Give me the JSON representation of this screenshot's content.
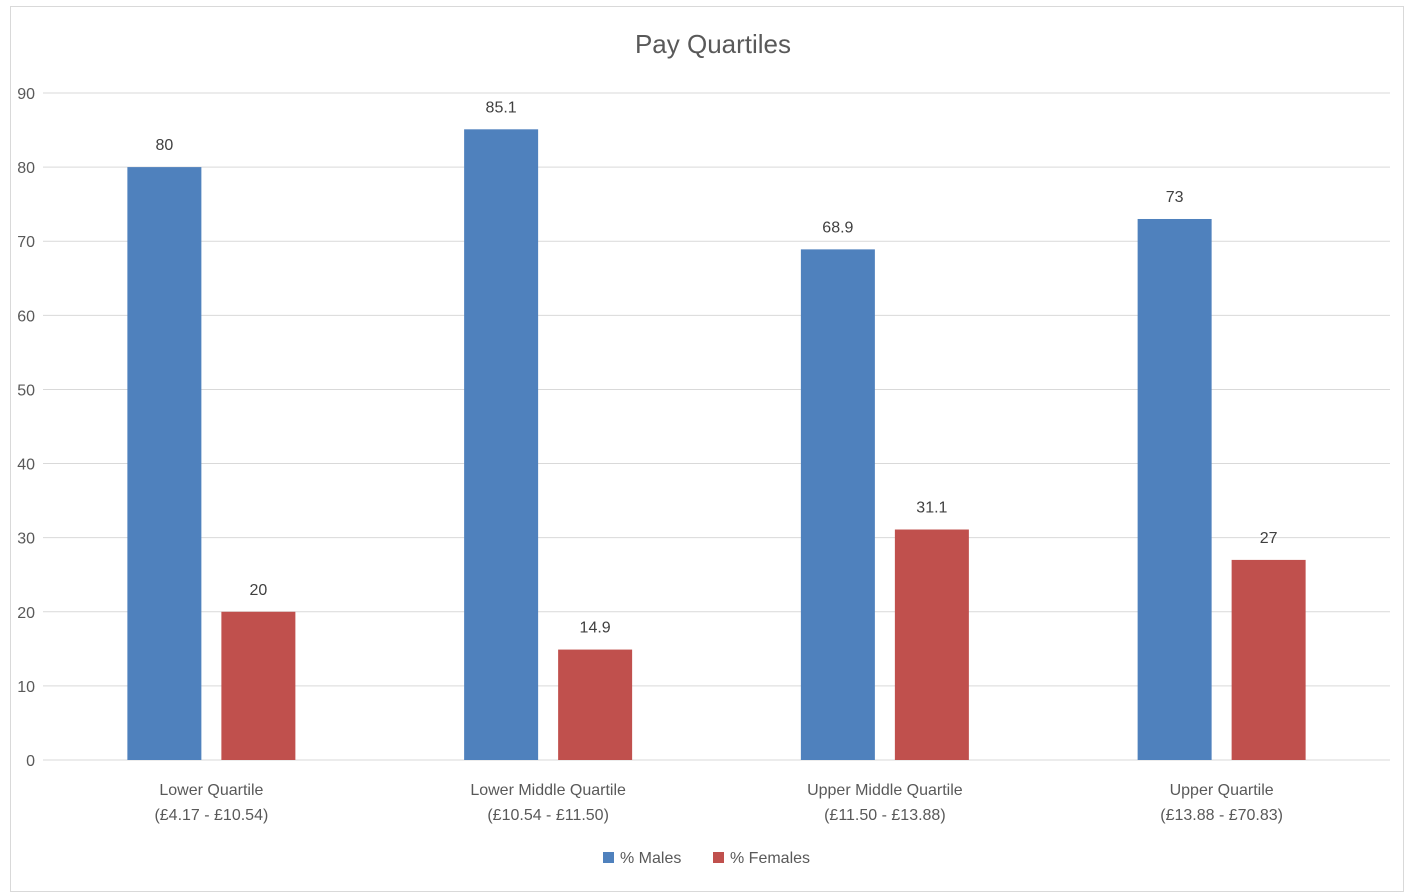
{
  "chart_data": {
    "type": "bar",
    "title": "Pay  Quartiles",
    "categories": [
      [
        "Lower Quartile",
        "(£4.17 - £10.54)"
      ],
      [
        "Lower Middle Quartile",
        "(£10.54 - £11.50)"
      ],
      [
        "Upper Middle Quartile",
        "(£11.50 - £13.88)"
      ],
      [
        "Upper Quartile",
        "(£13.88 - £70.83)"
      ]
    ],
    "series": [
      {
        "name": "% Males",
        "color": "#4f81bd",
        "values": [
          80,
          85.1,
          68.9,
          73
        ]
      },
      {
        "name": "% Females",
        "color": "#c0504d",
        "values": [
          20,
          14.9,
          31.1,
          27
        ]
      }
    ],
    "xlabel": "",
    "ylabel": "",
    "ylim": [
      0,
      90
    ],
    "yticks": [
      0,
      10,
      20,
      30,
      40,
      50,
      60,
      70,
      80,
      90
    ],
    "grid": true,
    "data_labels": true,
    "legend_position": "bottom",
    "gridline_color": "#d9d9d9"
  }
}
